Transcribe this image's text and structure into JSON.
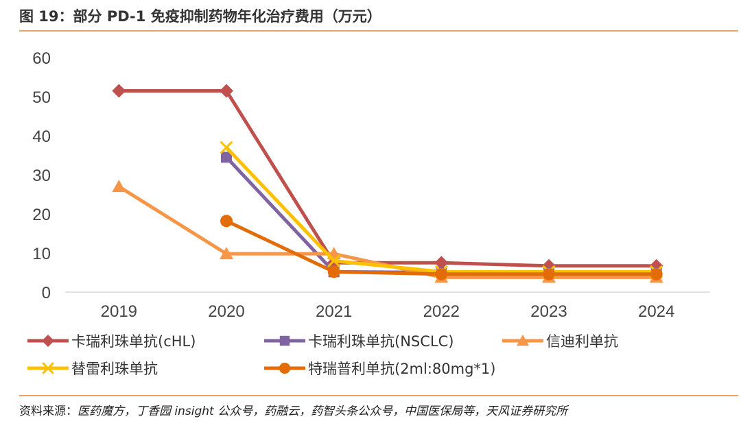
{
  "figure": {
    "title": "图 19：部分 PD-1 免疫抑制药物年化治疗费用（万元）",
    "source_label": "资料来源：",
    "source_items": "医药魔方，丁香园 insight 公众号，药融云，药智头条公众号，中国医保局等，天风证券研究所"
  },
  "colors": {
    "rule": "#f0a060",
    "gridline": "#d9d9d9"
  },
  "chart_data": {
    "type": "line",
    "x": [
      "2019",
      "2020",
      "2021",
      "2022",
      "2023",
      "2024"
    ],
    "ylim": [
      0,
      60
    ],
    "yticks": [
      0,
      10,
      20,
      30,
      40,
      50,
      60
    ],
    "grid": "none",
    "legend_position": "bottom",
    "series": [
      {
        "name": "卡瑞利珠单抗(cHL)",
        "color": "#c0504d",
        "marker": "diamond",
        "values": [
          51.5,
          51.5,
          7.5,
          7.5,
          6.7,
          6.7
        ]
      },
      {
        "name": "卡瑞利珠单抗(NSCLC)",
        "color": "#8064a2",
        "marker": "square",
        "values": [
          null,
          34.5,
          5.2,
          5.0,
          5.0,
          5.0
        ]
      },
      {
        "name": "信迪利单抗",
        "color": "#f79646",
        "marker": "triangle",
        "values": [
          27.0,
          9.8,
          9.8,
          3.8,
          3.8,
          3.8
        ]
      },
      {
        "name": "替雷利珠单抗",
        "color": "#ffc000",
        "marker": "x",
        "values": [
          null,
          37.0,
          8.0,
          5.2,
          5.2,
          5.2
        ]
      },
      {
        "name": "特瑞普利单抗(2ml:80mg*1)",
        "color": "#e36c09",
        "marker": "circle",
        "values": [
          null,
          18.2,
          5.2,
          4.6,
          4.6,
          4.6
        ]
      }
    ]
  }
}
